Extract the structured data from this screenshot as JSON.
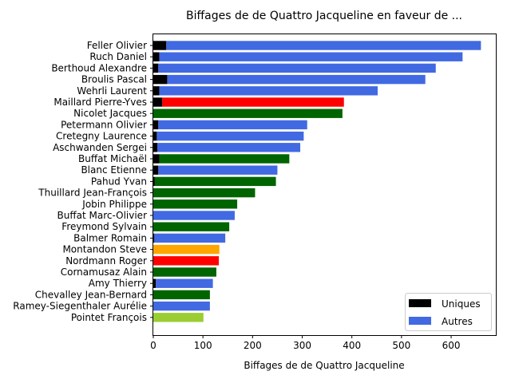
{
  "chart_data": {
    "type": "bar",
    "orientation": "horizontal",
    "stacked": true,
    "title": "Biffages de de Quattro Jacqueline en faveur de ...",
    "xlabel": "Biffages de de Quattro Jacqueline",
    "ylabel": "",
    "xlim": [
      0,
      690
    ],
    "xticks": [
      0,
      100,
      200,
      300,
      400,
      500,
      600
    ],
    "grid": false,
    "legend_position": "bottom-right",
    "legend": [
      {
        "name": "Uniques",
        "color": "#000000"
      },
      {
        "name": "Autres",
        "color": "#4169e1"
      }
    ],
    "categories": [
      "Feller Olivier",
      "Ruch Daniel",
      "Berthoud Alexandre",
      "Broulis Pascal",
      "Wehrli Laurent",
      "Maillard Pierre-Yves",
      "Nicolet Jacques",
      "Petermann Olivier",
      "Cretegny Laurence",
      "Aschwanden Sergei",
      "Buffat Michaël",
      "Blanc Etienne",
      "Pahud Yvan",
      "Thuillard Jean-François",
      "Jobin Philippe",
      "Buffat Marc-Olivier",
      "Freymond Sylvain",
      "Balmer Romain",
      "Montandon Steve",
      "Nordmann Roger",
      "Cornamusaz Alain",
      "Amy Thierry",
      "Chevalley Jean-Bernard",
      "Ramey-Siegenthaler Aurélie",
      "Pointet François"
    ],
    "series": [
      {
        "name": "Uniques",
        "values": [
          26,
          12,
          10,
          28,
          12,
          18,
          0,
          10,
          7,
          8,
          12,
          10,
          3,
          0,
          0,
          0,
          0,
          2,
          0,
          0,
          0,
          5,
          0,
          0,
          0
        ]
      },
      {
        "name": "Autres",
        "values": [
          634,
          611,
          559,
          520,
          440,
          366,
          381,
          300,
          296,
          288,
          262,
          240,
          244,
          205,
          169,
          164,
          153,
          143,
          133,
          132,
          127,
          115,
          114,
          114,
          101
        ]
      }
    ],
    "bar_colors": [
      "#4169e1",
      "#4169e1",
      "#4169e1",
      "#4169e1",
      "#4169e1",
      "#ff0000",
      "#006400",
      "#4169e1",
      "#4169e1",
      "#4169e1",
      "#006400",
      "#4169e1",
      "#006400",
      "#006400",
      "#006400",
      "#4169e1",
      "#006400",
      "#4169e1",
      "#ffa500",
      "#ff0000",
      "#006400",
      "#4169e1",
      "#006400",
      "#4169e1",
      "#9acd32"
    ]
  }
}
